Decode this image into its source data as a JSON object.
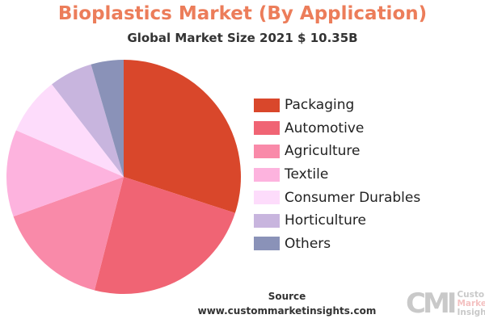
{
  "chart_data": {
    "type": "pie",
    "title": "Bioplastics Market (By Application)",
    "subtitle": "Global Market Size 2021 $ 10.35B",
    "categories": [
      "Packaging",
      "Automotive",
      "Agriculture",
      "Textile",
      "Consumer Durables",
      "Horticulture",
      "Others"
    ],
    "values": [
      30,
      24,
      15.5,
      12,
      8,
      6,
      4.5
    ],
    "colors": [
      "#d9472b",
      "#f06474",
      "#f98aa9",
      "#fdb3de",
      "#fddcfb",
      "#c8b5de",
      "#8a92b8"
    ],
    "start_angle": "top",
    "direction": "clockwise",
    "legend": "right"
  },
  "footer": {
    "source_label": "Source",
    "source_url": "www.custommarketinsights.com"
  },
  "logo": {
    "mark": "CMI",
    "line1": "Custom",
    "line2": "Market",
    "line3": "Insights"
  }
}
